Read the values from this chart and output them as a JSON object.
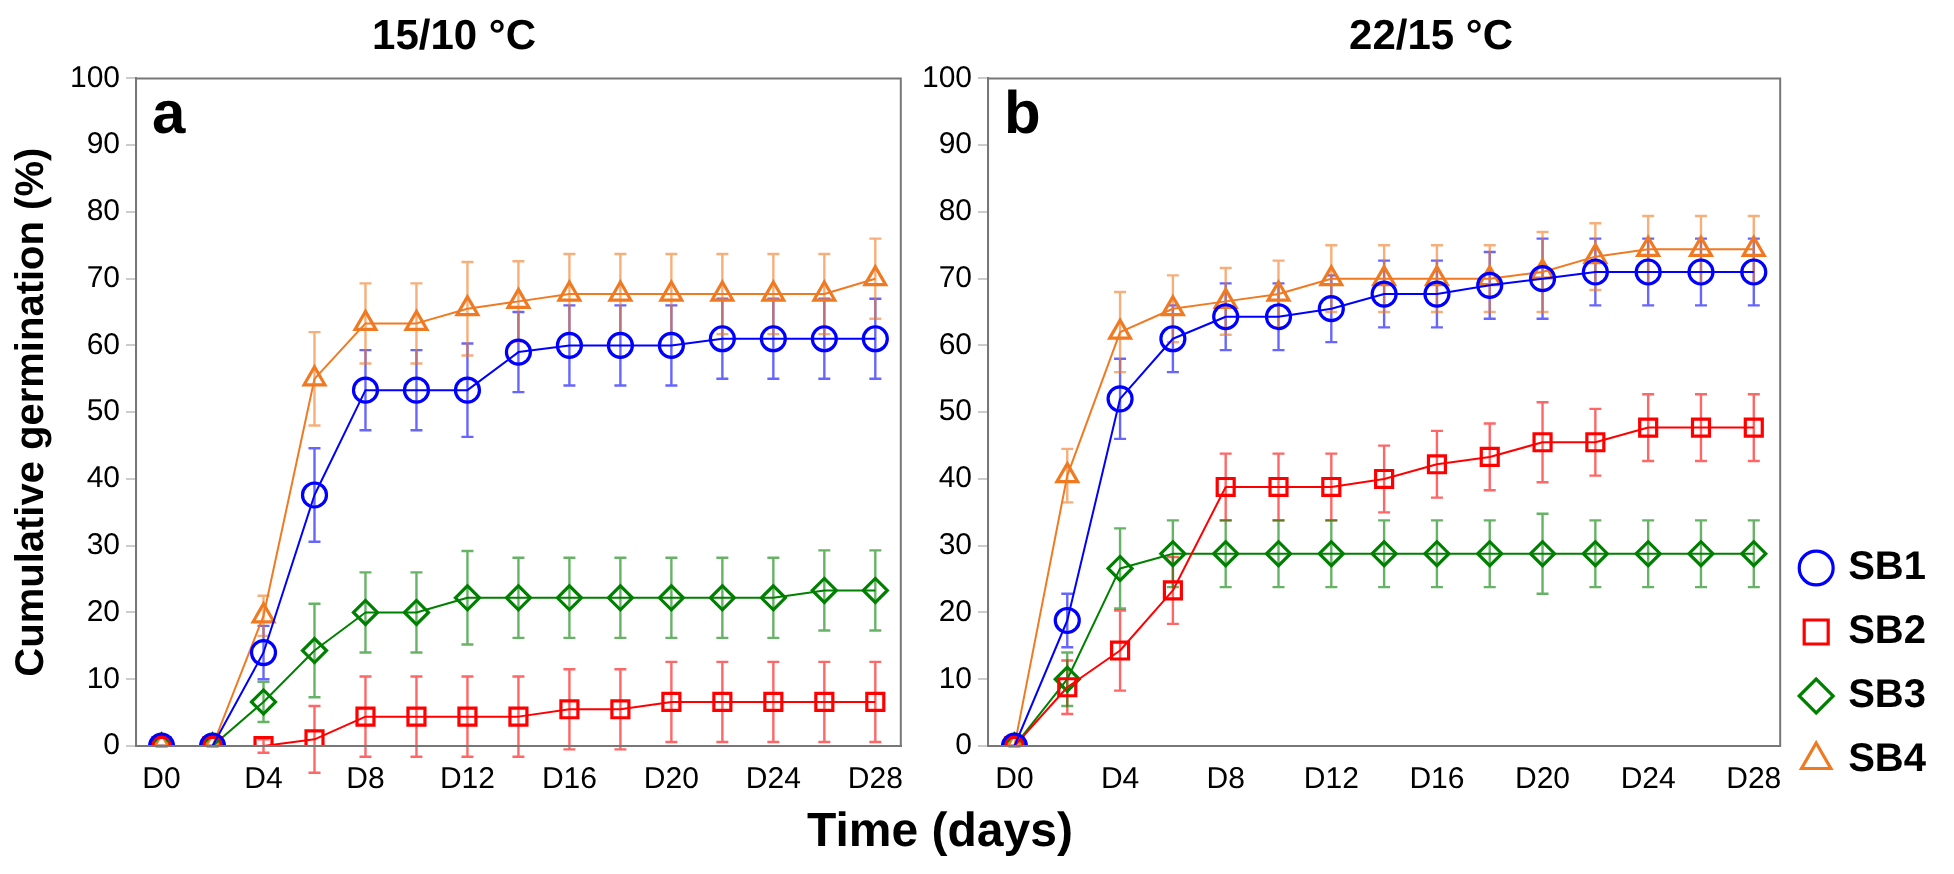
{
  "chart_data": [
    {
      "type": "line",
      "title": "15/10 °C",
      "ylabel": "Cumulative germination (%)",
      "xlabel": "Time (days)",
      "annotations": [
        "a"
      ],
      "legend": false,
      "categories": [
        "D0",
        null,
        "D4",
        null,
        "D8",
        null,
        "D12",
        null,
        "D16",
        null,
        "D20",
        null,
        "D24",
        null,
        "D28"
      ],
      "ylim": [
        0,
        100
      ],
      "yticks": [
        0,
        10,
        20,
        30,
        40,
        50,
        60,
        70,
        80,
        90,
        100
      ],
      "series": [
        {
          "color": "#0000ff",
          "marker": "circle",
          "values": [
            0,
            0,
            14,
            37.6,
            53.3,
            53.3,
            53.3,
            59,
            60,
            60,
            60,
            61,
            61,
            61,
            61
          ],
          "errors": [
            0,
            0,
            4,
            7,
            6,
            6,
            7,
            6,
            6,
            6,
            6,
            6,
            6,
            6,
            6
          ]
        },
        {
          "color": "#ff0000",
          "marker": "square",
          "values": [
            0,
            0,
            0,
            1,
            4.4,
            4.4,
            4.4,
            4.4,
            5.5,
            5.5,
            6.6,
            6.6,
            6.6,
            6.6,
            6.6
          ],
          "errors": [
            0,
            0,
            1,
            5,
            6,
            6,
            6,
            6,
            6,
            6,
            6,
            6,
            6,
            6,
            6
          ]
        },
        {
          "color": "#008000",
          "marker": "diamond",
          "values": [
            0,
            0,
            6.6,
            14.3,
            20,
            20,
            22.2,
            22.2,
            22.2,
            22.2,
            22.2,
            22.2,
            22.2,
            23.3,
            23.3
          ],
          "errors": [
            0,
            0,
            3,
            7,
            6,
            6,
            7,
            6,
            6,
            6,
            6,
            6,
            6,
            6,
            6
          ]
        },
        {
          "color": "#f07a22",
          "marker": "triangle",
          "values": [
            0,
            0,
            19.5,
            55,
            63.3,
            63.3,
            65.5,
            66.6,
            67.7,
            67.7,
            67.7,
            67.7,
            67.7,
            67.7,
            70
          ],
          "errors": [
            0,
            0,
            3,
            7,
            6,
            6,
            7,
            6,
            6,
            6,
            6,
            6,
            6,
            6,
            6
          ]
        }
      ]
    },
    {
      "type": "line",
      "title": "22/15 °C",
      "annotations": [
        "b"
      ],
      "legend": "right",
      "categories": [
        "D0",
        null,
        "D4",
        null,
        "D8",
        null,
        "D12",
        null,
        "D16",
        null,
        "D20",
        null,
        "D24",
        null,
        "D28"
      ],
      "ylim": [
        0,
        100
      ],
      "yticks": [
        0,
        10,
        20,
        30,
        40,
        50,
        60,
        70,
        80,
        90,
        100
      ],
      "series": [
        {
          "name": "SB1",
          "color": "#0000ff",
          "marker": "circle",
          "values": [
            0,
            18.8,
            52,
            61,
            64.3,
            64.3,
            65.5,
            67.7,
            67.7,
            69,
            70,
            71,
            71,
            71,
            71
          ],
          "errors": [
            0,
            4,
            6,
            5,
            5,
            5,
            5,
            5,
            5,
            5,
            6,
            5,
            5,
            5,
            5
          ]
        },
        {
          "name": "SB2",
          "color": "#ff0000",
          "marker": "square",
          "values": [
            0,
            8.8,
            14.3,
            23.3,
            38.8,
            38.8,
            38.8,
            40,
            42.2,
            43.3,
            45.5,
            45.5,
            47.7,
            47.7,
            47.7
          ],
          "errors": [
            0,
            4,
            6,
            5,
            5,
            5,
            5,
            5,
            5,
            5,
            6,
            5,
            5,
            5,
            5
          ]
        },
        {
          "name": "SB3",
          "color": "#008000",
          "marker": "diamond",
          "values": [
            0,
            10,
            26.6,
            28.8,
            28.8,
            28.8,
            28.8,
            28.8,
            28.8,
            28.8,
            28.8,
            28.8,
            28.8,
            28.8,
            28.8
          ],
          "errors": [
            0,
            4,
            6,
            5,
            5,
            5,
            5,
            5,
            5,
            5,
            6,
            5,
            5,
            5,
            5
          ]
        },
        {
          "name": "SB4",
          "color": "#f07a22",
          "marker": "triangle",
          "values": [
            0,
            40.5,
            62,
            65.5,
            66.6,
            67.7,
            70,
            70,
            70,
            70,
            71,
            73.3,
            74.4,
            74.4,
            74.4
          ],
          "errors": [
            0,
            4,
            6,
            5,
            5,
            5,
            5,
            5,
            5,
            5,
            6,
            5,
            5,
            5,
            5
          ]
        }
      ]
    }
  ]
}
